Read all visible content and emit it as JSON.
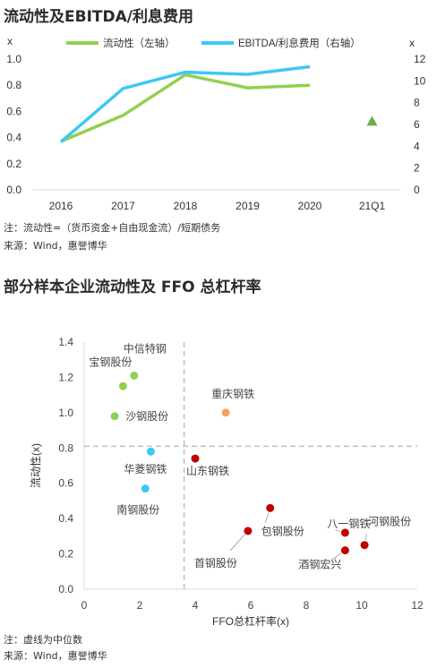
{
  "page": {
    "chart1_title": "流动性及EBITDA/利息费用",
    "chart1_note": "注：流动性=（货币资金+自由现金流）/短期债务",
    "chart1_source": "来源：Wind，惠誉博华",
    "chart2_title": "部分样本企业流动性及 FFO 总杠杆率",
    "chart2_note": "注：虚线为中位数",
    "chart2_source": "来源：Wind，惠誉博华"
  },
  "chart_data": [
    {
      "type": "line",
      "title": "流动性及EBITDA/利息费用",
      "categories": [
        "2016",
        "2017",
        "2018",
        "2019",
        "2020",
        "21Q1"
      ],
      "left_axis": {
        "unit": "x",
        "ylim": [
          0,
          1.0
        ],
        "ticks": [
          "0.0",
          "0.2",
          "0.4",
          "0.6",
          "0.8",
          "1.0"
        ]
      },
      "right_axis": {
        "unit": "x",
        "ylim": [
          0,
          12
        ],
        "ticks": [
          "0",
          "2",
          "4",
          "6",
          "8",
          "10",
          "12"
        ]
      },
      "series": [
        {
          "name": "流动性（左轴）",
          "axis": "left",
          "color": "#92d050",
          "values": [
            0.37,
            0.57,
            0.88,
            0.78,
            0.8,
            null
          ]
        },
        {
          "name": "EBITDA/利息费用（右轴）",
          "axis": "right",
          "color": "#3cc8f5",
          "values": [
            4.4,
            9.3,
            10.8,
            10.6,
            11.3,
            null
          ]
        }
      ],
      "extra_marker": {
        "category": "21Q1",
        "axis": "right",
        "value": 6.3,
        "shape": "triangle",
        "color": "#70ad47"
      },
      "legend": "top",
      "grid": false
    },
    {
      "type": "scatter",
      "title": "部分样本企业流动性及 FFO 总杠杆率",
      "xlabel": "FFO总杠杆率(x)",
      "ylabel": "流动性(x)",
      "xlim": [
        0,
        12
      ],
      "ylim": [
        0,
        1.4
      ],
      "xticks": [
        "0",
        "2",
        "4",
        "6",
        "8",
        "10",
        "12"
      ],
      "yticks": [
        "0.0",
        "0.2",
        "0.4",
        "0.6",
        "0.8",
        "1.0",
        "1.2",
        "1.4"
      ],
      "median_x": 3.6,
      "median_y": 0.81,
      "points": [
        {
          "label": "中信特钢",
          "x": 1.8,
          "y": 1.21,
          "color": "#92d050"
        },
        {
          "label": "宝钢股份",
          "x": 1.4,
          "y": 1.15,
          "color": "#92d050"
        },
        {
          "label": "沙钢股份",
          "x": 1.1,
          "y": 0.98,
          "color": "#92d050"
        },
        {
          "label": "重庆钢铁",
          "x": 5.1,
          "y": 1.0,
          "color": "#f0a55b"
        },
        {
          "label": "华菱钢铁",
          "x": 2.4,
          "y": 0.78,
          "color": "#3cc8f5"
        },
        {
          "label": "南钢股份",
          "x": 2.2,
          "y": 0.57,
          "color": "#3cc8f5"
        },
        {
          "label": "山东钢铁",
          "x": 4.0,
          "y": 0.74,
          "color": "#c00000"
        },
        {
          "label": "包钢股份",
          "x": 6.7,
          "y": 0.46,
          "color": "#c00000"
        },
        {
          "label": "首钢股份",
          "x": 5.9,
          "y": 0.33,
          "color": "#c00000"
        },
        {
          "label": "八一钢铁",
          "x": 9.4,
          "y": 0.32,
          "color": "#c00000"
        },
        {
          "label": "河钢股份",
          "x": 10.1,
          "y": 0.25,
          "color": "#c00000"
        },
        {
          "label": "酒钢宏兴",
          "x": 9.4,
          "y": 0.22,
          "color": "#c00000"
        }
      ],
      "grid": false
    }
  ]
}
